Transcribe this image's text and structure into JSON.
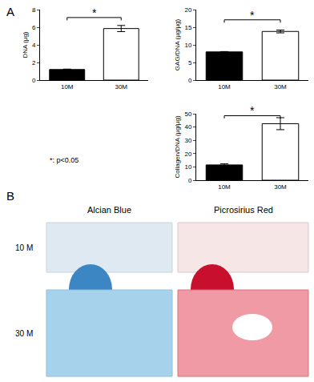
{
  "panel_labels": [
    "A",
    "B"
  ],
  "note": "*: p<0.05",
  "chart_data": [
    {
      "type": "bar",
      "y_label": "DNA (µg)",
      "categories": [
        "10M",
        "30M"
      ],
      "values": [
        1.2,
        5.85
      ],
      "error": [
        0.05,
        0.35
      ],
      "colors": [
        "#000000",
        "#ffffff"
      ],
      "ylim": [
        0,
        8
      ],
      "yticks": [
        0,
        2,
        4,
        6,
        8
      ],
      "annotations": [
        "*"
      ],
      "grid": false
    },
    {
      "type": "bar",
      "y_label": "GAG/DNA (µg/µg)",
      "categories": [
        "10M",
        "30M"
      ],
      "values": [
        8.0,
        13.8
      ],
      "error": [
        0.1,
        0.4
      ],
      "colors": [
        "#000000",
        "#ffffff"
      ],
      "ylim": [
        0,
        20
      ],
      "yticks": [
        0,
        5,
        10,
        15,
        20
      ],
      "annotations": [
        "*"
      ],
      "grid": false
    },
    {
      "type": "bar",
      "y_label": "Collagen/DNA (µg/µg)",
      "categories": [
        "10M",
        "30M"
      ],
      "values": [
        11.5,
        42.5
      ],
      "error": [
        0.8,
        4.5
      ],
      "colors": [
        "#000000",
        "#ffffff"
      ],
      "ylim": [
        0,
        50
      ],
      "yticks": [
        0,
        10,
        20,
        30,
        40,
        50
      ],
      "annotations": [
        "*"
      ],
      "grid": false
    }
  ],
  "histology": {
    "columns": [
      "Alcian Blue",
      "Picrosirius Red"
    ],
    "rows": [
      "10 M",
      "30 M"
    ]
  }
}
